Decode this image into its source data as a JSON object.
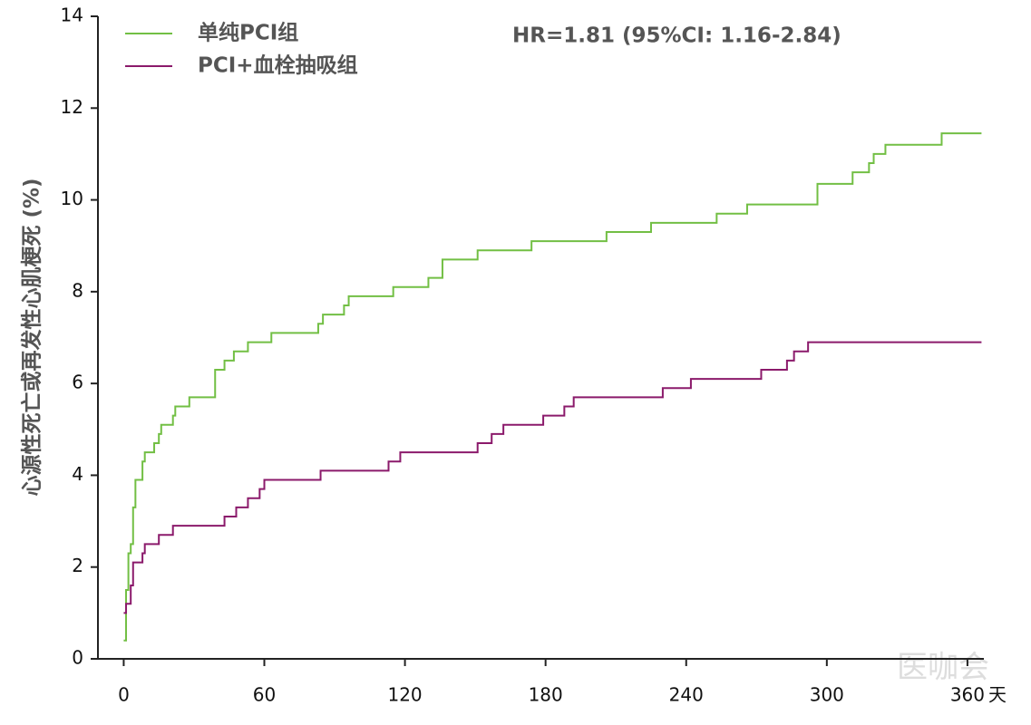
{
  "chart_data": {
    "type": "step",
    "y_label": "心源性死亡或再发性心肌梗死 (%)",
    "x_unit": "天",
    "annotation": "HR=1.81 (95%CI: 1.16-2.84)",
    "watermark": "医咖会",
    "xlim": [
      -11,
      367
    ],
    "xticks": [
      0,
      60,
      120,
      180,
      240,
      300,
      360
    ],
    "ylim": [
      0,
      14
    ],
    "yticks": [
      0,
      2,
      4,
      6,
      8,
      10,
      12,
      14
    ],
    "series": [
      {
        "name": "单纯PCI组",
        "color": "#72bf44",
        "x": [
          0,
          1,
          2,
          3,
          4,
          5,
          8,
          9,
          13,
          15,
          16,
          21,
          22,
          28,
          39,
          43,
          47,
          53,
          63,
          83,
          85,
          94,
          96,
          115,
          130,
          136,
          151,
          174,
          206,
          225,
          253,
          266,
          296,
          311,
          318,
          320,
          325,
          349,
          366
        ],
        "values": [
          0.4,
          1.5,
          2.3,
          2.5,
          3.3,
          3.9,
          4.3,
          4.5,
          4.7,
          4.9,
          5.1,
          5.3,
          5.5,
          5.7,
          6.3,
          6.5,
          6.7,
          6.9,
          7.1,
          7.3,
          7.5,
          7.7,
          7.9,
          8.1,
          8.3,
          8.7,
          8.9,
          9.1,
          9.3,
          9.5,
          9.7,
          9.9,
          10.35,
          10.6,
          10.8,
          11.0,
          11.2,
          11.45,
          11.45
        ]
      },
      {
        "name": "PCI+血栓抽吸组",
        "color": "#8b1a6b",
        "x": [
          0,
          1,
          3,
          4,
          8,
          9,
          15,
          21,
          43,
          48,
          53,
          58,
          60,
          84,
          113,
          118,
          151,
          157,
          162,
          179,
          188,
          192,
          230,
          242,
          272,
          283,
          286,
          292,
          366
        ],
        "values": [
          1.0,
          1.2,
          1.6,
          2.1,
          2.3,
          2.5,
          2.7,
          2.9,
          3.1,
          3.3,
          3.5,
          3.7,
          3.9,
          4.1,
          4.3,
          4.5,
          4.7,
          4.9,
          5.1,
          5.3,
          5.5,
          5.7,
          5.9,
          6.1,
          6.3,
          6.5,
          6.7,
          6.9,
          6.9
        ]
      }
    ]
  }
}
